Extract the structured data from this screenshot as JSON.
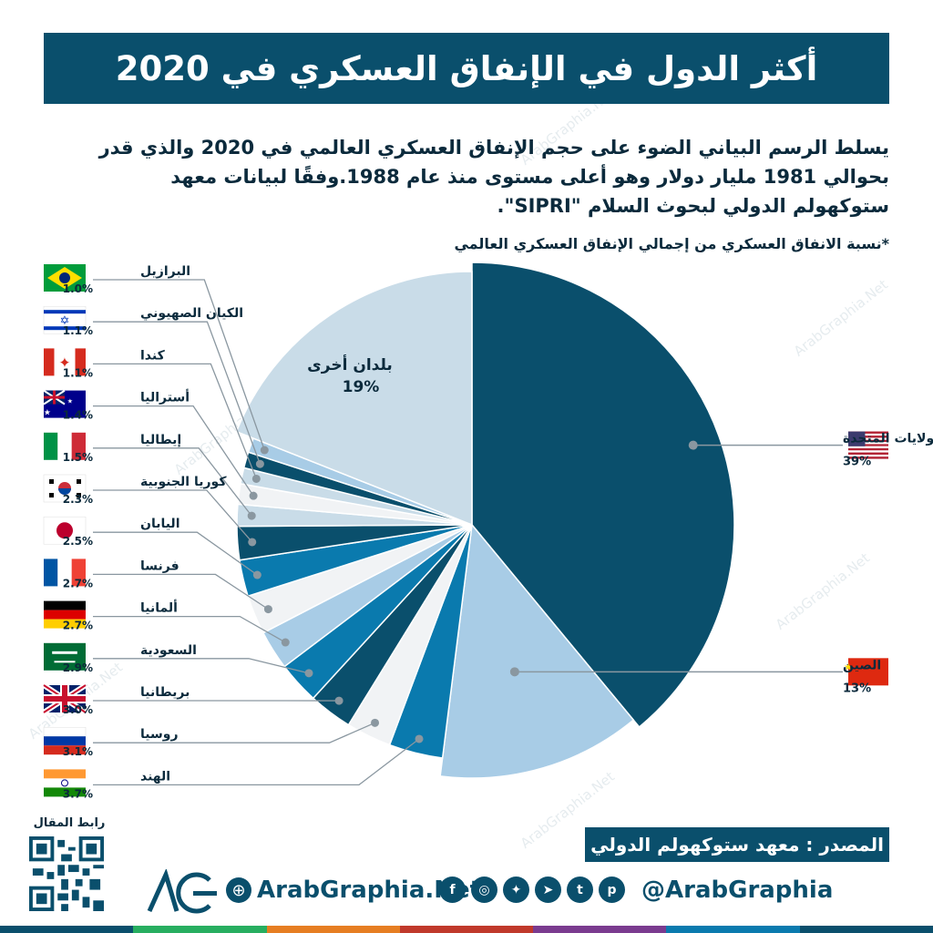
{
  "title": "أكثر الدول في الإنفاق العسكري في 2020",
  "intro": "يسلط الرسم البياني  الضوء على حجم الإنفاق العسكري العالمي في 2020 والذي قدر بحوالي 1981 مليار دولار وهو أعلى مستوى منذ عام 1988.وفقًا لبيانات معهد ستوكهولم الدولي لبحوث السلام \"SIPRI\".",
  "note": "*نسبة الانفاق العسكري من إجمالي الإنفاق العسكري العالمي",
  "source": "المصدر : معهد ستوكهولم الدولي",
  "qr_label": "رابط المقال",
  "website": "ArabGraphia.Net",
  "handle": "@ArabGraphia",
  "watermark": "ArabGraphia.Net",
  "social_icons": [
    "facebook-icon",
    "instagram-icon",
    "twitter-icon",
    "telegram-icon",
    "tumblr-icon",
    "pinterest-icon"
  ],
  "colors": {
    "brand": "#0a4f6c",
    "dark": "#0a4f6c",
    "medium": "#0a7aae",
    "light": "#a8cce6",
    "pale": "#f1f3f5",
    "other": "#c9dce8"
  },
  "chart_data": {
    "type": "pie",
    "unit": "%",
    "slices": [
      {
        "label": "الولايات المتحدة",
        "value": 39,
        "display": "39%",
        "color": "#0a4f6c",
        "flag": "usa-flag"
      },
      {
        "label": "الصين",
        "value": 13,
        "display": "13%",
        "color": "#a8cce6",
        "flag": "china-flag"
      },
      {
        "label": "الهند",
        "value": 3.7,
        "display": "3.7%",
        "color": "#0a7aae",
        "flag": "india-flag"
      },
      {
        "label": "روسيا",
        "value": 3.1,
        "display": "3.1%",
        "color": "#f1f3f5",
        "flag": "russia-flag"
      },
      {
        "label": "بريطانيا",
        "value": 3.0,
        "display": "3.0%",
        "color": "#0a4f6c",
        "flag": "uk-flag"
      },
      {
        "label": "السعودية",
        "value": 2.9,
        "display": "2.9%",
        "color": "#0a7aae",
        "flag": "saudi-flag"
      },
      {
        "label": "ألمانيا",
        "value": 2.7,
        "display": "2.7%",
        "color": "#a8cce6",
        "flag": "germany-flag"
      },
      {
        "label": "فرنسا",
        "value": 2.7,
        "display": "2.7%",
        "color": "#f1f3f5",
        "flag": "france-flag"
      },
      {
        "label": "اليابان",
        "value": 2.5,
        "display": "2.5%",
        "color": "#0a7aae",
        "flag": "japan-flag"
      },
      {
        "label": "كوريا الجنوبية",
        "value": 2.3,
        "display": "2.3%",
        "color": "#0a4f6c",
        "flag": "south-korea-flag"
      },
      {
        "label": "إيطاليا",
        "value": 1.5,
        "display": "1.5%",
        "color": "#c9dce8",
        "flag": "italy-flag"
      },
      {
        "label": "أستراليا",
        "value": 1.4,
        "display": "1.4%",
        "color": "#f1f3f5",
        "flag": "australia-flag"
      },
      {
        "label": "كندا",
        "value": 1.1,
        "display": "1.1%",
        "color": "#c9dce8",
        "flag": "canada-flag"
      },
      {
        "label": "الكيان الصهيوني",
        "value": 1.1,
        "display": "1.1%",
        "color": "#0a4f6c",
        "flag": "israel-flag"
      },
      {
        "label": "البرازيل",
        "value": 1.0,
        "display": "1.0%",
        "color": "#a8cce6",
        "flag": "brazil-flag"
      },
      {
        "label": "بلدان أخرى",
        "value": 19,
        "display": "19%",
        "color": "#c9dce8",
        "flag": ""
      }
    ]
  }
}
